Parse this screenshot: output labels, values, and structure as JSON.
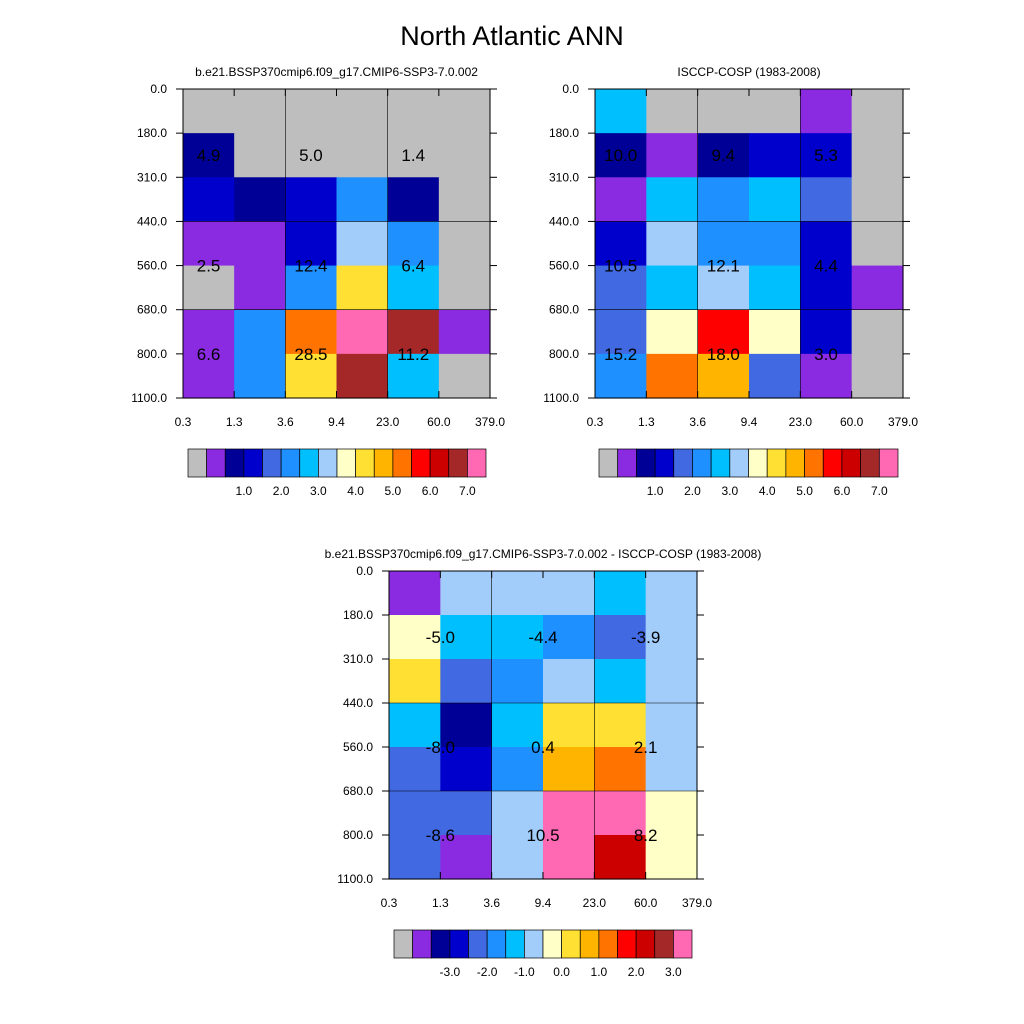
{
  "figure_title": "North Atlantic ANN",
  "chart_data": [
    {
      "type": "heatmap",
      "title": "b.e21.BSSP370cmip6.f09_g17.CMIP6-SSP3-7.0.002",
      "x_ticks": [
        "0.3",
        "1.3",
        "3.6",
        "9.4",
        "23.0",
        "60.0",
        "379.0"
      ],
      "y_ticks": [
        "0.0",
        "180.0",
        "310.0",
        "440.0",
        "560.0",
        "680.0",
        "800.0",
        "1100.0"
      ],
      "rows": [
        [
          "#bebebe",
          "#bebebe",
          "#bebebe",
          "#bebebe",
          "#bebebe",
          "#bebebe"
        ],
        [
          "#000096",
          "#bebebe",
          "#bebebe",
          "#bebebe",
          "#bebebe",
          "#bebebe"
        ],
        [
          "#0000cd",
          "#000096",
          "#0000cd",
          "#1e90ff",
          "#000096",
          "#bebebe"
        ],
        [
          "#8a2be2",
          "#8a2be2",
          "#0000cd",
          "#a2cdfa",
          "#1e90ff",
          "#bebebe"
        ],
        [
          "#bebebe",
          "#8a2be2",
          "#1e90ff",
          "#ffe033",
          "#00bfff",
          "#bebebe"
        ],
        [
          "#8a2be2",
          "#1e90ff",
          "#ff7300",
          "#ff69b4",
          "#a52828",
          "#8a2be2"
        ],
        [
          "#8a2be2",
          "#1e90ff",
          "#ffe033",
          "#a52828",
          "#00bfff",
          "#bebebe"
        ]
      ],
      "labels": [
        {
          "value": "4.9",
          "xi": 0.5,
          "yi": 1.5
        },
        {
          "value": "5.0",
          "xi": 2.5,
          "yi": 1.5
        },
        {
          "value": "1.4",
          "xi": 4.5,
          "yi": 1.5
        },
        {
          "value": "2.5",
          "xi": 0.5,
          "yi": 4.0
        },
        {
          "value": "12.4",
          "xi": 2.5,
          "yi": 4.0
        },
        {
          "value": "6.4",
          "xi": 4.5,
          "yi": 4.0
        },
        {
          "value": "6.6",
          "xi": 0.5,
          "yi": 6.0
        },
        {
          "value": "28.5",
          "xi": 2.5,
          "yi": 6.0
        },
        {
          "value": "11.2",
          "xi": 4.5,
          "yi": 6.0
        }
      ],
      "colorbar": {
        "colors": [
          "#bebebe",
          "#8a2be2",
          "#000096",
          "#0000cd",
          "#4169e1",
          "#1e90ff",
          "#00bfff",
          "#a2cdfa",
          "#ffffc8",
          "#ffe033",
          "#ffb400",
          "#ff7300",
          "#ff0000",
          "#cd0000",
          "#a52828",
          "#ff69b4"
        ],
        "tick_labels": [
          "1.0",
          "2.0",
          "3.0",
          "4.0",
          "5.0",
          "6.0",
          "7.0"
        ]
      }
    },
    {
      "type": "heatmap",
      "title": "ISCCP-COSP (1983-2008)",
      "x_ticks": [
        "0.3",
        "1.3",
        "3.6",
        "9.4",
        "23.0",
        "60.0",
        "379.0"
      ],
      "y_ticks": [
        "0.0",
        "180.0",
        "310.0",
        "440.0",
        "560.0",
        "680.0",
        "800.0",
        "1100.0"
      ],
      "rows": [
        [
          "#00bfff",
          "#bebebe",
          "#bebebe",
          "#bebebe",
          "#8a2be2",
          "#bebebe"
        ],
        [
          "#000096",
          "#8a2be2",
          "#000096",
          "#0000cd",
          "#0000cd",
          "#bebebe"
        ],
        [
          "#8a2be2",
          "#00bfff",
          "#1e90ff",
          "#00bfff",
          "#4169e1",
          "#bebebe"
        ],
        [
          "#0000cd",
          "#a2cdfa",
          "#1e90ff",
          "#1e90ff",
          "#0000cd",
          "#bebebe"
        ],
        [
          "#4169e1",
          "#00bfff",
          "#a2cdfa",
          "#00bfff",
          "#0000cd",
          "#8a2be2"
        ],
        [
          "#4169e1",
          "#ffffc8",
          "#ff0000",
          "#ffffc8",
          "#0000cd",
          "#bebebe"
        ],
        [
          "#1e90ff",
          "#ff7300",
          "#ffb400",
          "#4169e1",
          "#8a2be2",
          "#bebebe"
        ]
      ],
      "labels": [
        {
          "value": "10.0",
          "xi": 0.5,
          "yi": 1.5
        },
        {
          "value": "9.4",
          "xi": 2.5,
          "yi": 1.5
        },
        {
          "value": "5.3",
          "xi": 4.5,
          "yi": 1.5
        },
        {
          "value": "10.5",
          "xi": 0.5,
          "yi": 4.0
        },
        {
          "value": "12.1",
          "xi": 2.5,
          "yi": 4.0
        },
        {
          "value": "4.4",
          "xi": 4.5,
          "yi": 4.0
        },
        {
          "value": "15.2",
          "xi": 0.5,
          "yi": 6.0
        },
        {
          "value": "18.0",
          "xi": 2.5,
          "yi": 6.0
        },
        {
          "value": "3.0",
          "xi": 4.5,
          "yi": 6.0
        }
      ],
      "colorbar": {
        "colors": [
          "#bebebe",
          "#8a2be2",
          "#000096",
          "#0000cd",
          "#4169e1",
          "#1e90ff",
          "#00bfff",
          "#a2cdfa",
          "#ffffc8",
          "#ffe033",
          "#ffb400",
          "#ff7300",
          "#ff0000",
          "#cd0000",
          "#a52828",
          "#ff69b4"
        ],
        "tick_labels": [
          "1.0",
          "2.0",
          "3.0",
          "4.0",
          "5.0",
          "6.0",
          "7.0"
        ]
      }
    },
    {
      "type": "heatmap",
      "title": "b.e21.BSSP370cmip6.f09_g17.CMIP6-SSP3-7.0.002 - ISCCP-COSP (1983-2008)",
      "x_ticks": [
        "0.3",
        "1.3",
        "3.6",
        "9.4",
        "23.0",
        "60.0",
        "379.0"
      ],
      "y_ticks": [
        "0.0",
        "180.0",
        "310.0",
        "440.0",
        "560.0",
        "680.0",
        "800.0",
        "1100.0"
      ],
      "rows": [
        [
          "#8a2be2",
          "#a2cdfa",
          "#a2cdfa",
          "#a2cdfa",
          "#00bfff",
          "#a2cdfa"
        ],
        [
          "#ffffc8",
          "#00bfff",
          "#00bfff",
          "#1e90ff",
          "#4169e1",
          "#a2cdfa"
        ],
        [
          "#ffe033",
          "#4169e1",
          "#1e90ff",
          "#a2cdfa",
          "#00bfff",
          "#a2cdfa"
        ],
        [
          "#00bfff",
          "#000096",
          "#00bfff",
          "#ffe033",
          "#ffe033",
          "#a2cdfa"
        ],
        [
          "#4169e1",
          "#0000cd",
          "#1e90ff",
          "#ffb400",
          "#ff7300",
          "#a2cdfa"
        ],
        [
          "#4169e1",
          "#4169e1",
          "#a2cdfa",
          "#ff69b4",
          "#ff69b4",
          "#ffffc8"
        ],
        [
          "#4169e1",
          "#8a2be2",
          "#a2cdfa",
          "#ff69b4",
          "#cd0000",
          "#ffffc8"
        ]
      ],
      "labels": [
        {
          "value": "-5.0",
          "xi": 1.0,
          "yi": 1.5
        },
        {
          "value": "-4.4",
          "xi": 3.0,
          "yi": 1.5
        },
        {
          "value": "-3.9",
          "xi": 5.0,
          "yi": 1.5
        },
        {
          "value": "-8.0",
          "xi": 1.0,
          "yi": 4.0
        },
        {
          "value": "0.4",
          "xi": 3.0,
          "yi": 4.0
        },
        {
          "value": "2.1",
          "xi": 5.0,
          "yi": 4.0
        },
        {
          "value": "-8.6",
          "xi": 1.0,
          "yi": 6.0
        },
        {
          "value": "10.5",
          "xi": 3.0,
          "yi": 6.0
        },
        {
          "value": "8.2",
          "xi": 5.0,
          "yi": 6.0
        }
      ],
      "colorbar": {
        "colors": [
          "#bebebe",
          "#8a2be2",
          "#000096",
          "#0000cd",
          "#4169e1",
          "#1e90ff",
          "#00bfff",
          "#a2cdfa",
          "#ffffc8",
          "#ffe033",
          "#ffb400",
          "#ff7300",
          "#ff0000",
          "#cd0000",
          "#a52828",
          "#ff69b4"
        ],
        "tick_labels": [
          "-3.0",
          "-2.0",
          "-1.0",
          "0.0",
          "1.0",
          "2.0",
          "3.0"
        ]
      }
    }
  ]
}
